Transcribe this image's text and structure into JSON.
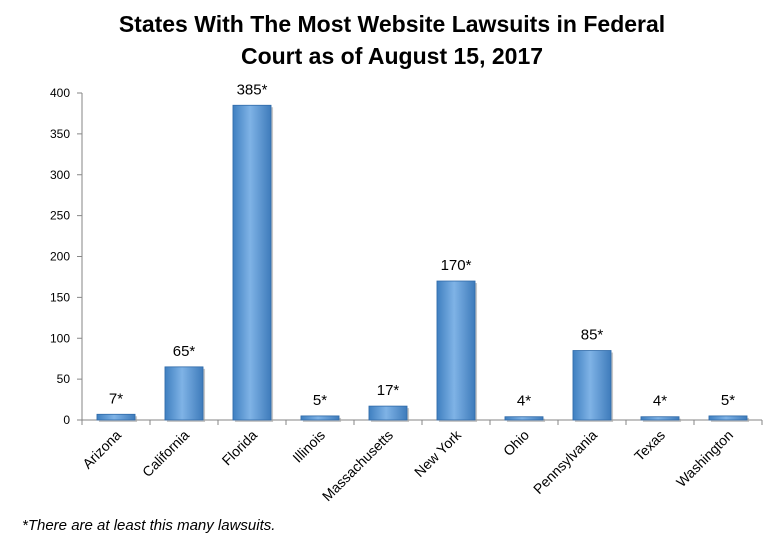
{
  "chart_data": {
    "type": "bar",
    "title_line1": "States With The Most Website Lawsuits in Federal",
    "title_line2": "Court as of August 15, 2017",
    "categories": [
      "Arizona",
      "California",
      "Florida",
      "Illinois",
      "Massachusetts",
      "New York",
      "Ohio",
      "Pennsylvania",
      "Texas",
      "Washington"
    ],
    "values": [
      7,
      65,
      385,
      5,
      17,
      170,
      4,
      85,
      4,
      5
    ],
    "value_labels": [
      "7*",
      "65*",
      "385*",
      "5*",
      "17*",
      "170*",
      "4*",
      "85*",
      "4*",
      "5*"
    ],
    "y_ticks": [
      "0",
      "50",
      "100",
      "150",
      "200",
      "250",
      "300",
      "350",
      "400"
    ],
    "ylim": [
      0,
      400
    ],
    "grid": false,
    "legend": "none",
    "bar_color": "#5b9bd5",
    "footnote": "*There are at least this many lawsuits."
  }
}
